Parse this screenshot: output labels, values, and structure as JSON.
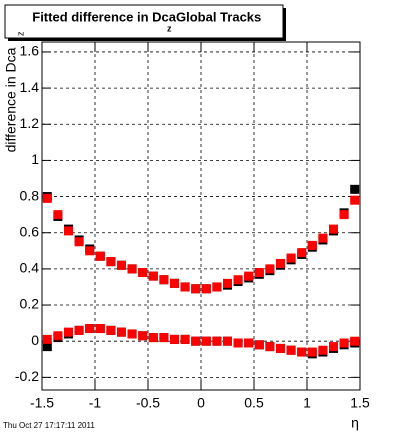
{
  "chart_data": {
    "type": "scatter",
    "title": "Fitted difference in Dca",
    "title_subscript": "z",
    "title_suffix": "Global Tracks",
    "y_label": "difference in Dca",
    "y_label_subscript": "z",
    "x_label": "η",
    "footer": "Thu Oct 27 17:17:11 2011",
    "x": [
      -1.45,
      -1.35,
      -1.25,
      -1.15,
      -1.05,
      -0.95,
      -0.85,
      -0.75,
      -0.65,
      -0.55,
      -0.45,
      -0.35,
      -0.25,
      -0.15,
      -0.05,
      0.05,
      0.15,
      0.25,
      0.35,
      0.45,
      0.55,
      0.65,
      0.75,
      0.85,
      0.95,
      1.05,
      1.15,
      1.25,
      1.35,
      1.45
    ],
    "series": [
      {
        "color": "#000000",
        "values": [
          0.8,
          0.69,
          0.62,
          0.56,
          0.51,
          0.47,
          0.44,
          0.42,
          0.4,
          0.38,
          0.36,
          0.34,
          0.32,
          0.3,
          0.29,
          0.29,
          0.3,
          0.31,
          0.33,
          0.35,
          0.37,
          0.39,
          0.42,
          0.45,
          0.48,
          0.52,
          0.56,
          0.61,
          0.71,
          0.84
        ]
      },
      {
        "color": "#000000",
        "values": [
          -0.03,
          0.02,
          0.04,
          0.06,
          0.07,
          0.07,
          0.06,
          0.05,
          0.04,
          0.03,
          0.02,
          0.02,
          0.01,
          0.01,
          0,
          0,
          0,
          0,
          -0.01,
          -0.01,
          -0.02,
          -0.03,
          -0.04,
          -0.05,
          -0.06,
          -0.07,
          -0.06,
          -0.04,
          -0.02,
          -0.01
        ]
      },
      {
        "color": "#ff0000",
        "values": [
          0.79,
          0.7,
          0.61,
          0.55,
          0.5,
          0.47,
          0.44,
          0.42,
          0.4,
          0.38,
          0.36,
          0.34,
          0.32,
          0.3,
          0.29,
          0.29,
          0.3,
          0.32,
          0.34,
          0.36,
          0.38,
          0.4,
          0.43,
          0.46,
          0.49,
          0.53,
          0.57,
          0.62,
          0.7,
          0.78
        ]
      },
      {
        "color": "#ff0000",
        "values": [
          0.01,
          0.03,
          0.05,
          0.06,
          0.07,
          0.07,
          0.06,
          0.05,
          0.04,
          0.03,
          0.02,
          0.02,
          0.01,
          0.01,
          0,
          0,
          0,
          0,
          -0.01,
          -0.01,
          -0.02,
          -0.03,
          -0.04,
          -0.05,
          -0.06,
          -0.06,
          -0.05,
          -0.03,
          -0.01,
          0
        ]
      }
    ],
    "xlim": [
      -1.5,
      1.5
    ],
    "xticks": [
      -1.5,
      -1,
      -0.5,
      0,
      0.5,
      1,
      1.5
    ],
    "ylim": [
      -0.27,
      1.655
    ],
    "yticks": [
      -0.2,
      0,
      0.2,
      0.4,
      0.6,
      0.8,
      1,
      1.2,
      1.4,
      1.6
    ],
    "grid": true
  }
}
